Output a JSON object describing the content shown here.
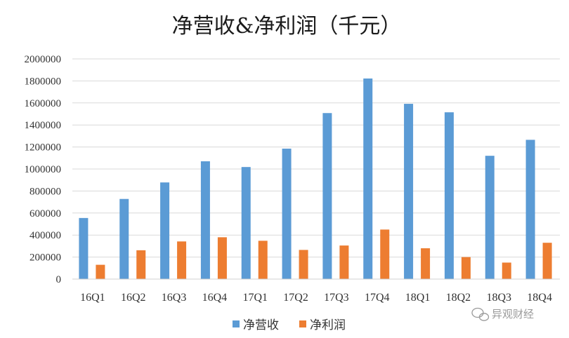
{
  "chart_data": {
    "type": "bar",
    "title": "净营收&净利润（千元）",
    "xlabel": "",
    "ylabel": "",
    "ylim": [
      0,
      2000000
    ],
    "yticks": [
      "0",
      "200000",
      "400000",
      "600000",
      "800000",
      "1000000",
      "1200000",
      "1400000",
      "1600000",
      "1800000",
      "2000000"
    ],
    "grid": true,
    "legend_position": "bottom",
    "categories": [
      "16Q1",
      "16Q2",
      "16Q3",
      "16Q4",
      "17Q1",
      "17Q2",
      "17Q3",
      "17Q4",
      "18Q1",
      "18Q2",
      "18Q3",
      "18Q4"
    ],
    "series": [
      {
        "name": "净营收",
        "color": "#5B9BD5",
        "values": [
          555000,
          728000,
          878000,
          1070000,
          1018000,
          1185000,
          1508000,
          1822000,
          1592000,
          1515000,
          1120000,
          1265000
        ]
      },
      {
        "name": "净利润",
        "color": "#ED7D31",
        "values": [
          130000,
          262000,
          342000,
          380000,
          348000,
          265000,
          305000,
          450000,
          280000,
          200000,
          150000,
          330000
        ]
      }
    ]
  },
  "watermark": {
    "text": "异观财经",
    "icon": "wechat-icon"
  }
}
